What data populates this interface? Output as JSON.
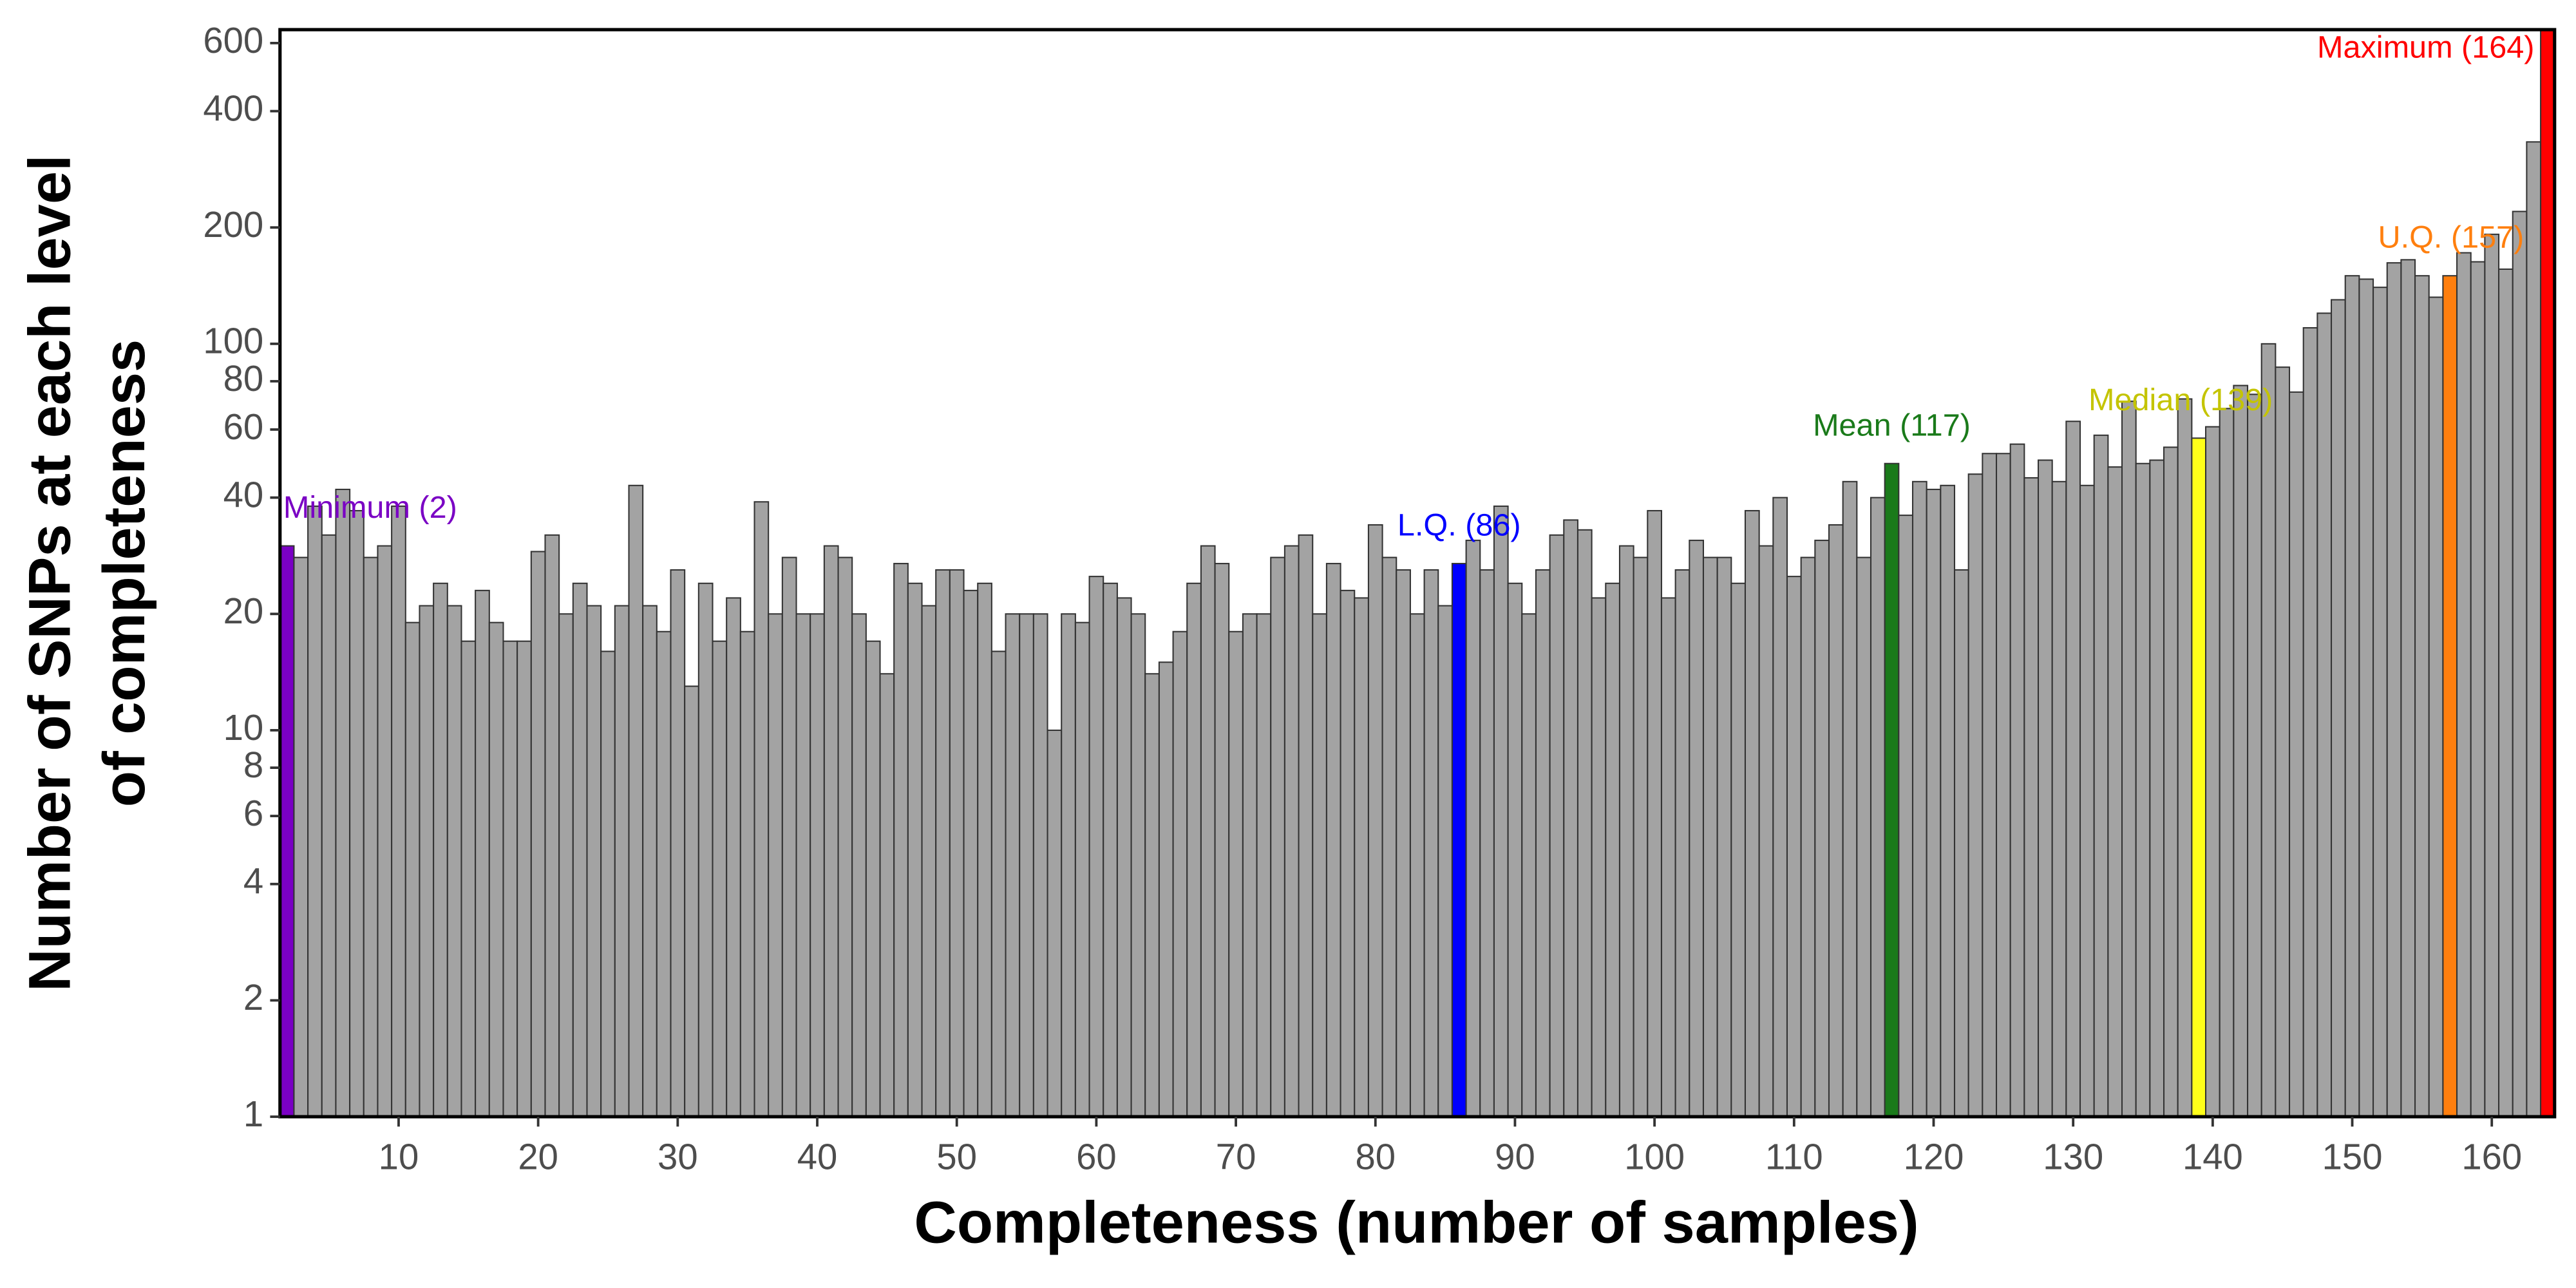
{
  "chart_data": {
    "type": "bar",
    "x_label": "Completeness (number of samples)",
    "y_label": [
      "Number of SNPs at each level",
      "of completeness"
    ],
    "x": [
      2,
      3,
      4,
      5,
      6,
      7,
      8,
      9,
      10,
      11,
      12,
      13,
      14,
      15,
      16,
      17,
      18,
      19,
      20,
      21,
      22,
      23,
      24,
      25,
      26,
      27,
      28,
      29,
      30,
      31,
      32,
      33,
      34,
      35,
      36,
      37,
      38,
      39,
      40,
      41,
      42,
      43,
      44,
      45,
      46,
      47,
      48,
      49,
      50,
      51,
      52,
      53,
      54,
      55,
      56,
      57,
      58,
      59,
      60,
      61,
      62,
      63,
      64,
      65,
      66,
      67,
      68,
      69,
      70,
      71,
      72,
      73,
      74,
      75,
      76,
      77,
      78,
      79,
      80,
      81,
      82,
      83,
      84,
      85,
      86,
      87,
      88,
      89,
      90,
      91,
      92,
      93,
      94,
      95,
      96,
      97,
      98,
      99,
      100,
      101,
      102,
      103,
      104,
      105,
      106,
      107,
      108,
      109,
      110,
      111,
      112,
      113,
      114,
      115,
      116,
      117,
      118,
      119,
      120,
      121,
      122,
      123,
      124,
      125,
      126,
      127,
      128,
      129,
      130,
      131,
      132,
      133,
      134,
      135,
      136,
      137,
      138,
      139,
      140,
      141,
      142,
      143,
      144,
      145,
      146,
      147,
      148,
      149,
      150,
      151,
      152,
      153,
      154,
      155,
      156,
      157,
      158,
      159,
      160,
      161,
      162,
      163,
      164
    ],
    "values": [
      30,
      28,
      38,
      32,
      42,
      37,
      28,
      30,
      38,
      19,
      21,
      24,
      21,
      17,
      23,
      19,
      17,
      17,
      29,
      32,
      20,
      24,
      21,
      16,
      21,
      43,
      21,
      18,
      26,
      13,
      24,
      17,
      22,
      18,
      39,
      20,
      28,
      20,
      20,
      30,
      28,
      20,
      17,
      14,
      27,
      24,
      21,
      26,
      26,
      23,
      24,
      16,
      20,
      20,
      20,
      10,
      20,
      19,
      25,
      24,
      22,
      20,
      14,
      15,
      18,
      24,
      30,
      27,
      18,
      20,
      20,
      28,
      30,
      32,
      20,
      27,
      23,
      22,
      34,
      28,
      26,
      20,
      26,
      21,
      27,
      31,
      26,
      38,
      24,
      20,
      26,
      32,
      35,
      33,
      22,
      24,
      30,
      28,
      37,
      22,
      26,
      31,
      28,
      28,
      24,
      37,
      30,
      40,
      25,
      28,
      31,
      34,
      44,
      28,
      40,
      49,
      36,
      44,
      42,
      43,
      26,
      46,
      52,
      52,
      55,
      45,
      50,
      44,
      63,
      43,
      58,
      48,
      71,
      49,
      50,
      54,
      72,
      57,
      61,
      68,
      78,
      74,
      100,
      87,
      75,
      110,
      120,
      130,
      150,
      147,
      140,
      162,
      165,
      150,
      132,
      150,
      172,
      163,
      192,
      156,
      220,
      333,
      650
    ],
    "color": "#a3a3a3",
    "edge_color": "#333333",
    "highlights": [
      {
        "label": "Minimum (2)",
        "x": 2,
        "color": "#7a00c4",
        "label_color": "#7a00c4"
      },
      {
        "label": "L.Q. (86)",
        "x": 86,
        "color": "#0000ff",
        "label_color": "#0000ff"
      },
      {
        "label": "Mean (117)",
        "x": 117,
        "color": "#1a7a1a",
        "label_color": "#1a7a1a"
      },
      {
        "label": "Median (139)",
        "x": 139,
        "color": "#ffff1a",
        "label_color": "#c4c400"
      },
      {
        "label": "U.Q. (157)",
        "x": 157,
        "color": "#ff7f0e",
        "label_color": "#ff7f0e"
      },
      {
        "label": "Maximum (164)",
        "x": 164,
        "color": "#ff0000",
        "label_color": "#ff0000"
      }
    ],
    "xlim": [
      1.5,
      164.5
    ],
    "ylim": [
      1,
      650
    ],
    "ylog": true,
    "xticks": [
      10,
      20,
      30,
      40,
      50,
      60,
      70,
      80,
      90,
      100,
      110,
      120,
      130,
      140,
      150,
      160
    ],
    "yticks": [
      1,
      2,
      4,
      6,
      8,
      10,
      20,
      40,
      60,
      80,
      100,
      200,
      400,
      600
    ]
  }
}
